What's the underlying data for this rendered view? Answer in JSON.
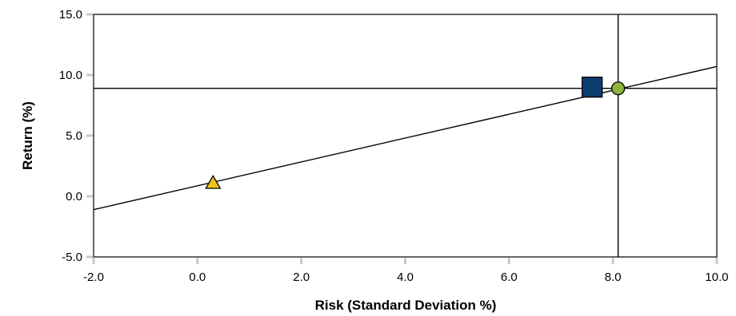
{
  "chart_data": {
    "type": "scatter",
    "xlabel": "Risk (Standard Deviation %)",
    "ylabel": "Return (%)",
    "xlim": [
      -2.0,
      10.0
    ],
    "ylim": [
      -5.0,
      15.0
    ],
    "x_ticks": [
      -2.0,
      0.0,
      2.0,
      4.0,
      6.0,
      8.0,
      10.0
    ],
    "y_ticks": [
      -5.0,
      0.0,
      5.0,
      10.0,
      15.0
    ],
    "x_tick_labels": [
      "-2.0",
      "0.0",
      "2.0",
      "4.0",
      "6.0",
      "8.0",
      "10.0"
    ],
    "y_tick_labels": [
      "-5.0",
      "0.0",
      "5.0",
      "10.0",
      "15.0"
    ],
    "grid": false,
    "points": [
      {
        "marker": "triangle",
        "color": "#F2C21B",
        "x": 0.3,
        "y": 1.1
      },
      {
        "marker": "square",
        "color": "#0B3C6E",
        "x": 7.6,
        "y": 9.0
      },
      {
        "marker": "circle",
        "color": "#8DB33A",
        "x": 8.1,
        "y": 8.9
      }
    ],
    "lines": [
      {
        "kind": "segment",
        "x1": -2.0,
        "y1": -1.1,
        "x2": 10.0,
        "y2": 10.7
      },
      {
        "kind": "horizontal",
        "y": 8.9
      },
      {
        "kind": "vertical",
        "x": 8.1
      }
    ],
    "colors": {
      "axis": "#000000",
      "tick_mark": "#C8C8C8",
      "marker_stroke": "#000000"
    }
  }
}
